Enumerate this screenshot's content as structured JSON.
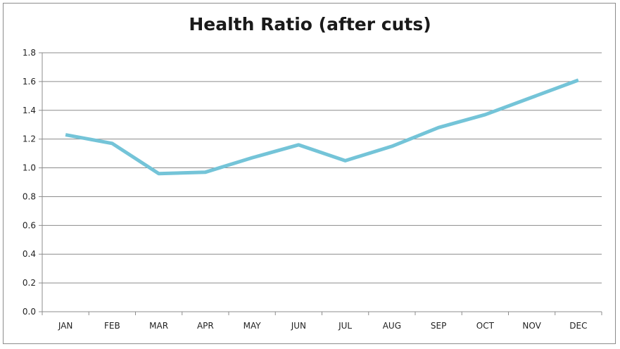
{
  "chart_data": {
    "type": "line",
    "title": "Health Ratio (after cuts)",
    "xlabel": "",
    "ylabel": "",
    "categories": [
      "JAN",
      "FEB",
      "MAR",
      "APR",
      "MAY",
      "JUN",
      "JUL",
      "AUG",
      "SEP",
      "OCT",
      "NOV",
      "DEC"
    ],
    "series": [
      {
        "values": [
          1.23,
          1.17,
          0.96,
          0.97,
          1.07,
          1.16,
          1.05,
          1.15,
          1.28,
          1.37,
          1.49,
          1.61
        ]
      }
    ],
    "ylim": [
      0,
      1.8
    ],
    "yticks": [
      "0.0",
      "0.2",
      "0.4",
      "0.6",
      "0.8",
      "1.0",
      "1.2",
      "1.4",
      "1.6",
      "1.8"
    ],
    "grid": true,
    "legend": "none",
    "colors": {
      "line": "#74c4d8",
      "grid": "#8c8c8c",
      "axis": "#8c8c8c"
    }
  }
}
